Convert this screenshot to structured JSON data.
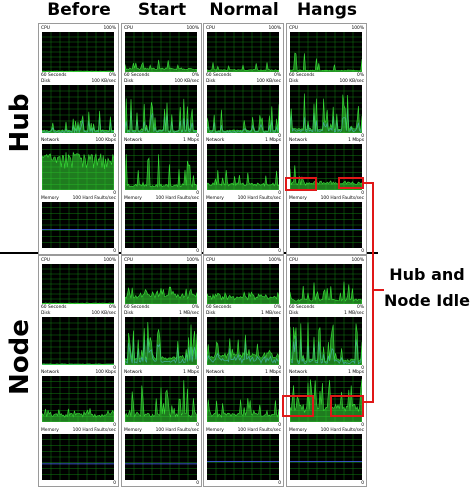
{
  "columns": [
    "Before",
    "Start",
    "Normal",
    "Hangs"
  ],
  "rows": [
    "Hub",
    "Node"
  ],
  "annotation": {
    "line1": "Hub and",
    "line2": "Node Idle"
  },
  "labels": {
    "cpu": "CPU",
    "cpu_max": "100%",
    "cpu_time": "60 Seconds",
    "cpu_min": "0%",
    "disk": "Disk",
    "net": "Network",
    "mem": "Memory",
    "mem_max": "100 Hard Faults/sec",
    "zero": "0",
    "hub": {
      "disk_max": [
        "100 KB/sec",
        "100 KB/sec",
        "100 KB/sec",
        "100 KB/sec"
      ],
      "net_max": [
        "100 Kbps",
        "1 Mbps",
        "1 Mbps",
        "1 Mbps"
      ]
    },
    "node": {
      "disk_max": [
        "100 KB/sec",
        "1 MB/sec",
        "1 MB/sec",
        "1 MB/sec"
      ],
      "net_max": [
        "100 Kbps",
        "1 Mbps",
        "1 Mbps",
        "1 Mbps"
      ]
    }
  },
  "colors": {
    "graph_bg": "#000000",
    "grid": "#107a10",
    "green": "#38e238",
    "blue": "#4a6cff",
    "annotation_box": "#e01818"
  }
}
